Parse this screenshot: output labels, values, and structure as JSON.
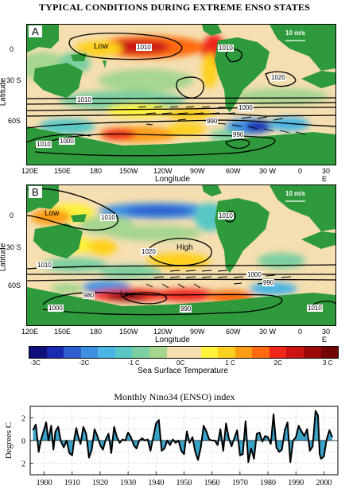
{
  "title": "TYPICAL CONDITIONS DURING EXTREME ENSO STATES",
  "colors": {
    "land": "#2e9a3b",
    "neutral": "#f5deb0",
    "ocean_land_bg": "#ffffff",
    "index_fill": "#3aa3c8"
  },
  "maps": [
    {
      "label": "A",
      "xlabel": "Longitude",
      "ylabel": "Latitude",
      "xticks": [
        "120E",
        "150E",
        "180",
        "150W",
        "120W",
        "90W",
        "60W",
        "30 W",
        "0",
        "30 E"
      ],
      "yticks": [
        "0",
        "30 S",
        "60S"
      ],
      "wind_reference": "10 m/s",
      "pressure_labels": [
        "1010",
        "1010",
        "1020",
        "1010",
        "1000",
        "990",
        "990",
        "1010",
        "1000"
      ],
      "region_labels": [
        "Low"
      ]
    },
    {
      "label": "B",
      "xlabel": "Longitude",
      "ylabel": "Latitude",
      "xticks": [
        "120E",
        "150E",
        "180",
        "150W",
        "120W",
        "90W",
        "60W",
        "30 W",
        "0",
        "30 E"
      ],
      "yticks": [
        "0",
        "30 S",
        "60S"
      ],
      "wind_reference": "10 m/s",
      "pressure_labels": [
        "1010",
        "1010",
        "1020",
        "1010",
        "1000",
        "990",
        "980",
        "1000",
        "990",
        "1010"
      ],
      "region_labels": [
        "Low",
        "High",
        "Low"
      ]
    }
  ],
  "colorbar": {
    "label": "Sea Surface Temperature",
    "ticks": [
      "-3C",
      "-2C",
      "-1 C",
      "0C",
      "1 C",
      "2C",
      "3 C"
    ],
    "colors": [
      "#10107a",
      "#1a2ab0",
      "#2d5fd0",
      "#3d8fe0",
      "#4ab4e4",
      "#59c7c4",
      "#7ccfa0",
      "#a6d68f",
      "#f5deb0",
      "#f5deb0",
      "#fff23a",
      "#ffd01e",
      "#ff9e14",
      "#ff6a10",
      "#f0281a",
      "#cc1414",
      "#9e0a0a",
      "#720404"
    ]
  },
  "chart_data": {
    "type": "area",
    "title": "Monthly Nino34 (ENSO) index",
    "xlabel": "",
    "ylabel": "Degrees C",
    "xlim": [
      1895,
      2005
    ],
    "ylim": [
      -3,
      3
    ],
    "x_ticks": [
      1900,
      1910,
      1920,
      1930,
      1940,
      1950,
      1960,
      1970,
      1980,
      1990,
      2000
    ],
    "y_tick_labels": [
      "2",
      "0",
      "2"
    ],
    "y_tick_values": [
      2,
      0,
      -2
    ],
    "grid": true,
    "series": [
      {
        "x": [
          1896,
          1897,
          1897.5,
          1898,
          1899,
          1900,
          1900.7,
          1901.5,
          1902.5,
          1903.3,
          1904,
          1905,
          1906,
          1907,
          1908,
          1909,
          1910,
          1910.8,
          1911.5,
          1912,
          1913,
          1914,
          1915,
          1916,
          1917,
          1918,
          1919,
          1920,
          1921,
          1922,
          1923,
          1924,
          1925,
          1926,
          1927,
          1928,
          1929,
          1930,
          1931,
          1932,
          1933,
          1934,
          1935,
          1936,
          1937,
          1938,
          1939,
          1940,
          1941,
          1942,
          1943,
          1944,
          1945,
          1946,
          1947,
          1948,
          1949,
          1950,
          1951,
          1952,
          1953,
          1954,
          1955,
          1956,
          1957,
          1958,
          1959,
          1960,
          1961,
          1962,
          1963,
          1964,
          1965,
          1966,
          1967,
          1968,
          1969,
          1970,
          1971,
          1972,
          1973,
          1974,
          1975,
          1976,
          1977,
          1978,
          1979,
          1980,
          1981,
          1982,
          1983,
          1984,
          1985,
          1986,
          1987,
          1988,
          1989,
          1990,
          1991,
          1992,
          1993,
          1994,
          1995,
          1996,
          1997,
          1997.9,
          1998.5,
          1999,
          2000,
          2001,
          2002,
          2003
        ],
        "y": [
          0.9,
          1.4,
          0.3,
          -1.0,
          0.2,
          1.0,
          1.6,
          0.0,
          1.3,
          -0.8,
          0.8,
          1.2,
          -0.1,
          -0.6,
          0.0,
          -1.1,
          -1.3,
          0.2,
          1.1,
          0.5,
          -0.3,
          1.2,
          0.6,
          -1.5,
          -0.8,
          1.0,
          0.4,
          -0.4,
          -0.8,
          0.1,
          0.6,
          -1.1,
          1.2,
          0.3,
          -0.2,
          0.1,
          0.0,
          0.7,
          0.3,
          -0.4,
          -0.7,
          0.0,
          0.2,
          0.0,
          0.1,
          -0.9,
          0.3,
          1.5,
          1.8,
          -0.9,
          -0.7,
          0.0,
          -0.4,
          0.1,
          -0.2,
          0.0,
          -0.9,
          -1.2,
          0.8,
          -0.2,
          0.3,
          -1.0,
          -1.7,
          -0.6,
          1.3,
          0.8,
          0.1,
          0.0,
          0.0,
          -0.4,
          1.0,
          -0.9,
          1.5,
          0.2,
          -0.5,
          0.2,
          0.9,
          -1.3,
          -1.2,
          1.7,
          -1.9,
          -0.7,
          -1.6,
          0.6,
          0.7,
          -0.1,
          0.4,
          0.3,
          -0.3,
          2.3,
          -0.6,
          -1.0,
          -0.8,
          0.9,
          1.6,
          -1.9,
          0.0,
          0.3,
          1.3,
          0.8,
          0.4,
          1.0,
          -0.9,
          -0.5,
          2.6,
          2.2,
          -1.2,
          -1.6,
          -1.4,
          0.1,
          0.9,
          0.3
        ]
      }
    ]
  }
}
